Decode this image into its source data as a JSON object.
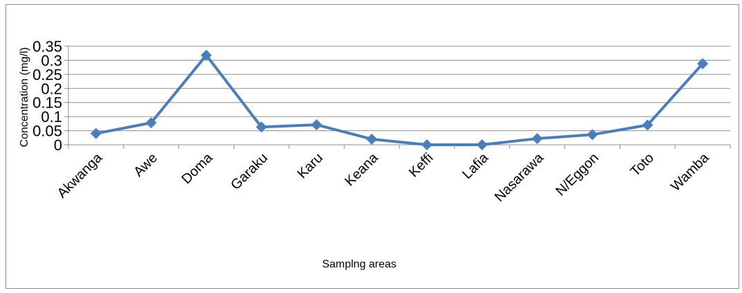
{
  "chart_data": {
    "type": "line",
    "title": "",
    "xlabel": "Samplng areas",
    "ylabel": "Concentration (mg/l)",
    "categories": [
      "Akwanga",
      "Awe",
      "Doma",
      "Garaku",
      "Karu",
      "Keana",
      "Keffi",
      "Lafia",
      "Nasarawa",
      "N/Eggon",
      "Toto",
      "Wamba"
    ],
    "series": [
      {
        "values": [
          0.04,
          0.078,
          0.318,
          0.063,
          0.071,
          0.02,
          0.0,
          0.0,
          0.022,
          0.036,
          0.07,
          0.288
        ]
      }
    ],
    "ylim": [
      0,
      0.35
    ],
    "yticks": [
      "0",
      "0.05",
      "0.1",
      "0.15",
      "0.2",
      "0.25",
      "0.3",
      "0.35"
    ],
    "grid": true,
    "legend": "none",
    "line_color": "#4a7ebb",
    "marker": "diamond"
  }
}
